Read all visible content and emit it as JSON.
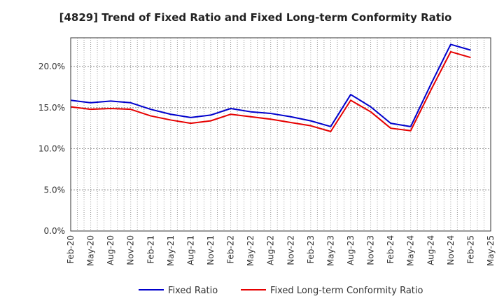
{
  "chart_data": {
    "type": "line",
    "title": "[4829]  Trend of Fixed Ratio and Fixed Long-term Conformity Ratio",
    "xlabel": "",
    "ylabel": "",
    "x": [
      "Feb-20",
      "May-20",
      "Aug-20",
      "Nov-20",
      "Feb-21",
      "May-21",
      "Aug-21",
      "Nov-21",
      "Feb-22",
      "May-22",
      "Aug-22",
      "Nov-22",
      "Feb-23",
      "May-23",
      "Aug-23",
      "Nov-23",
      "Feb-24",
      "May-24",
      "Aug-24",
      "Nov-24",
      "Feb-25",
      "May-25"
    ],
    "ylim": [
      0,
      23.5
    ],
    "yticks": [
      0,
      5,
      10,
      15,
      20
    ],
    "ytick_labels": [
      "0.0%",
      "5.0%",
      "10.0%",
      "15.0%",
      "20.0%"
    ],
    "grid": true,
    "legend_position": "bottom",
    "series": [
      {
        "name": "Fixed Ratio",
        "color": "#0000cc",
        "values": [
          15.9,
          15.6,
          15.8,
          15.6,
          14.8,
          14.2,
          13.8,
          14.1,
          14.9,
          14.5,
          14.3,
          13.9,
          13.4,
          12.7,
          16.6,
          15.1,
          13.1,
          12.7,
          17.8,
          22.7,
          22.0,
          null
        ]
      },
      {
        "name": "Fixed Long-term Conformity Ratio",
        "color": "#e60000",
        "values": [
          15.1,
          14.8,
          14.9,
          14.8,
          14.0,
          13.5,
          13.1,
          13.4,
          14.2,
          13.9,
          13.6,
          13.2,
          12.8,
          12.1,
          15.9,
          14.5,
          12.5,
          12.2,
          17.1,
          21.8,
          21.1,
          null
        ]
      }
    ]
  }
}
